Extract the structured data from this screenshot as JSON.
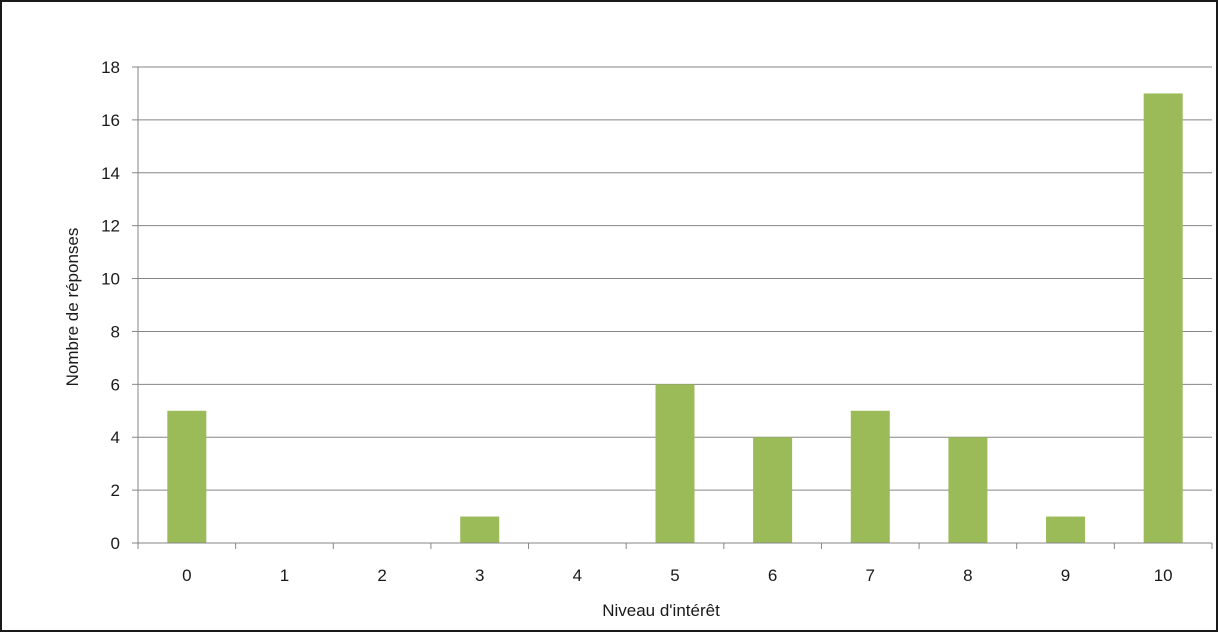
{
  "chart_data": {
    "type": "bar",
    "title": "",
    "xlabel": "Niveau d'intérêt",
    "ylabel": "Nombre de réponses",
    "categories": [
      "0",
      "1",
      "2",
      "3",
      "4",
      "5",
      "6",
      "7",
      "8",
      "9",
      "10"
    ],
    "values": [
      5,
      0,
      0,
      1,
      0,
      6,
      4,
      5,
      4,
      1,
      17
    ],
    "ylim": [
      0,
      18
    ],
    "yticks": [
      0,
      2,
      4,
      6,
      8,
      10,
      12,
      14,
      16,
      18
    ],
    "grid": true,
    "legend": "none",
    "colors": {
      "bar": "#9bbb59",
      "grid": "#868686",
      "axis": "#868686",
      "text": "#1a1a1a",
      "border": "#1a1a1a"
    }
  }
}
